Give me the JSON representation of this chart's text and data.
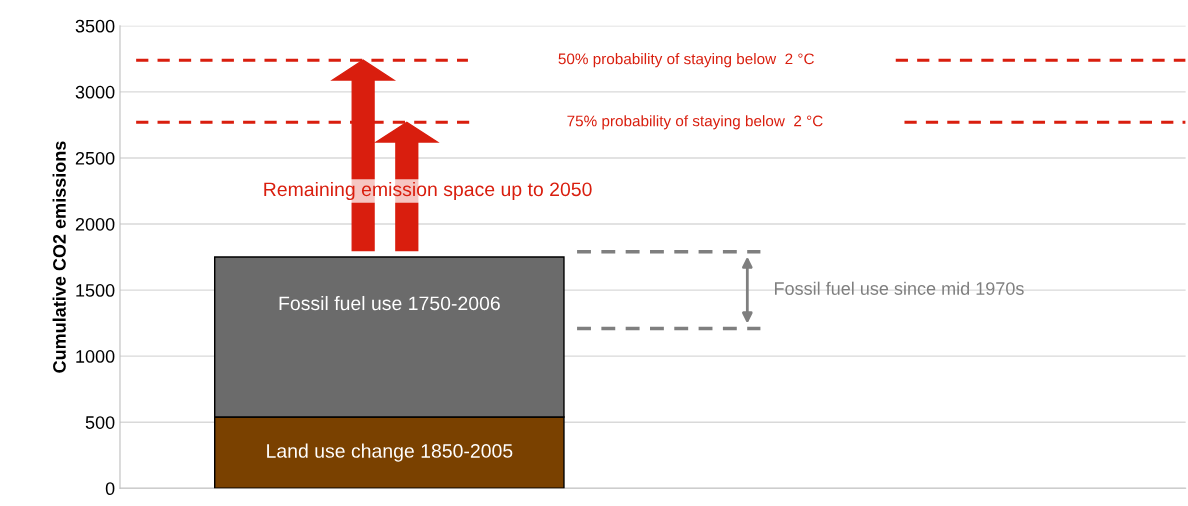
{
  "chart_data": {
    "type": "bar",
    "stacked": true,
    "ylabel": "Cumulative CO2 emissions",
    "categories": [
      null
    ],
    "series": [
      {
        "name": "Land use change 1850-2005",
        "color": "#7a4100",
        "values": [
          540
        ]
      },
      {
        "name": "Fossil fuel use 1750-2006",
        "color": "#6b6b6b",
        "values": [
          1210
        ]
      }
    ],
    "ylim": [
      0,
      3500
    ],
    "yticks": [
      0,
      500,
      1000,
      1500,
      2000,
      2500,
      3000,
      3500
    ],
    "grid": "y",
    "ref_lines": [
      {
        "axis": "y",
        "value": 3240,
        "label": "50% probability of staying below  2 °C",
        "color": "#d91e0e",
        "line_style": "dashed"
      },
      {
        "axis": "y",
        "value": 2770,
        "label": "75% probability of staying below  2 °C",
        "color": "#d91e0e",
        "line_style": "dashed"
      },
      {
        "axis": "y",
        "value": 1790,
        "color": "#7f7f7f",
        "line_style": "dashed"
      },
      {
        "axis": "y",
        "value": 1210,
        "color": "#7f7f7f",
        "line_style": "dashed"
      }
    ],
    "annotations": [
      "Remaining emission space up to 2050",
      "Fossil fuel use since mid 1970s"
    ]
  }
}
